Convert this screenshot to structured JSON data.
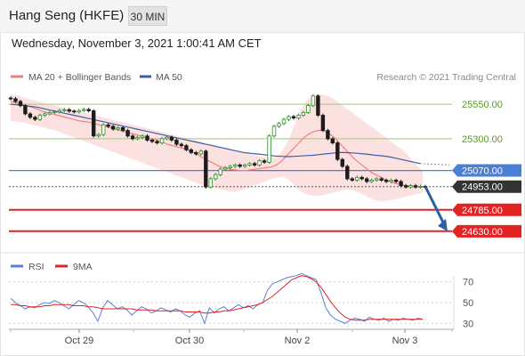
{
  "header": {
    "title": "Hang Seng (HKFE)",
    "timeframe": "30 MIN"
  },
  "datetime": "Wednesday, November 3, 2021 1:00:41 AM CET",
  "legend": {
    "ma20": "MA 20 + Bollinger Bands",
    "ma50": "MA 50",
    "rsi": "RSI",
    "ma9": "9MA"
  },
  "copyright": "Research © 2021 Trading Central",
  "colors": {
    "ma20": "#f08080",
    "ma50": "#3b5ea8",
    "bands": "#fcdcdc",
    "up": "#2e8b2e",
    "down": "#1c1c1c",
    "resistance": "#9ccc6a",
    "pivot": "#4a7fd4",
    "support": "#e32222",
    "arrow": "#2d5fa3",
    "rsi": "#5b7fd6",
    "ma9": "#e32222"
  },
  "chart_data": [
    {
      "type": "candlestick",
      "title": "Hang Seng (HKFE)",
      "x_ticks": [
        "Oct 29",
        "Oct 30",
        "Nov 2",
        "Nov 3"
      ],
      "ylim": [
        24500,
        25660
      ],
      "levels": {
        "resistance": [
          {
            "value": 25550,
            "label": "25550.00"
          },
          {
            "value": 25300,
            "label": "25300.00"
          }
        ],
        "pivot": {
          "value": 25070,
          "label": "25070.00"
        },
        "current": {
          "value": 24953,
          "label": "24953.00"
        },
        "support": [
          {
            "value": 24785,
            "label": "24785.00"
          },
          {
            "value": 24630,
            "label": "24630.00"
          }
        ]
      },
      "close": [
        25590,
        25570,
        25540,
        25480,
        25455,
        25440,
        25470,
        25480,
        25490,
        25495,
        25505,
        25510,
        25500,
        25495,
        25505,
        25512,
        25502,
        25320,
        25330,
        25400,
        25390,
        25370,
        25380,
        25360,
        25320,
        25300,
        25310,
        25320,
        25290,
        25280,
        25270,
        25300,
        25310,
        25290,
        25260,
        25250,
        25220,
        25200,
        25190,
        25210,
        24950,
        25010,
        25040,
        25080,
        25090,
        25100,
        25110,
        25100,
        25110,
        25120,
        25110,
        25140,
        25130,
        25320,
        25390,
        25410,
        25440,
        25460,
        25450,
        25470,
        25490,
        25540,
        25610,
        25470,
        25360,
        25300,
        25270,
        25150,
        25100,
        25010,
        25000,
        25020,
        25010,
        24990,
        25000,
        25010,
        25000,
        24990,
        25000,
        24990,
        24960,
        24950,
        24960,
        24950,
        24955,
        24953
      ],
      "ma20": [
        25570,
        25560,
        25550,
        25540,
        25530,
        25515,
        25500,
        25490,
        25480,
        25470,
        25460,
        25450,
        25440,
        25430,
        25425,
        25420,
        25410,
        25400,
        25390,
        25380,
        25370,
        25360,
        25350,
        25340,
        25330,
        25320,
        25310,
        25300,
        25290,
        25275,
        25260,
        25250,
        25240,
        25230,
        25220,
        25200,
        25180,
        25160,
        25140,
        25120,
        25100,
        25090,
        25080,
        25075,
        25070,
        25070,
        25075,
        25080,
        25085,
        25090,
        25095,
        25110,
        25140,
        25180,
        25220,
        25260,
        25300,
        25330,
        25350,
        25360,
        25360,
        25340,
        25310,
        25270,
        25230,
        25190,
        25150,
        25120,
        25090,
        25060,
        25040,
        25020,
        25000,
        24985,
        24975,
        24965,
        24960,
        24955,
        24952,
        24950
      ],
      "ma50": [
        25550,
        25545,
        25540,
        25535,
        25530,
        25520,
        25510,
        25500,
        25490,
        25480,
        25470,
        25460,
        25450,
        25440,
        25430,
        25420,
        25410,
        25400,
        25390,
        25380,
        25370,
        25360,
        25350,
        25340,
        25330,
        25320,
        25310,
        25300,
        25290,
        25280,
        25270,
        25260,
        25250,
        25240,
        25230,
        25220,
        25210,
        25200,
        25195,
        25190,
        25185,
        25180,
        25175,
        25172,
        25170,
        25172,
        25175,
        25178,
        25180,
        25185,
        25190,
        25195,
        25200,
        25200,
        25198,
        25195,
        25190,
        25186,
        25180,
        25176,
        25170,
        25160,
        25150,
        25140,
        25130,
        25120
      ],
      "ma50_projection": [
        25120,
        25110
      ],
      "bollinger_upper": [
        25620,
        25615,
        25605,
        25590,
        25580,
        25570,
        25560,
        25550,
        25540,
        25530,
        25520,
        25510,
        25500,
        25490,
        25480,
        25470,
        25460,
        25450,
        25440,
        25430,
        25420,
        25410,
        25400,
        25390,
        25380,
        25370,
        25360,
        25350,
        25340,
        25330,
        25320,
        25310,
        25300,
        25290,
        25280,
        25270,
        25260,
        25250,
        25240,
        25230,
        25220,
        25210,
        25200,
        25190,
        25180,
        25170,
        25160,
        25160,
        25180,
        25220,
        25300,
        25400,
        25500,
        25570,
        25600,
        25620,
        25620,
        25610,
        25590,
        25560,
        25530,
        25500,
        25470,
        25440,
        25410,
        25380,
        25350,
        25320,
        25290,
        25260,
        25230,
        25200,
        25150,
        25100,
        25070
      ],
      "bollinger_lower": [
        25430,
        25425,
        25420,
        25410,
        25400,
        25390,
        25380,
        25370,
        25360,
        25345,
        25330,
        25315,
        25300,
        25285,
        25270,
        25255,
        25240,
        25225,
        25210,
        25195,
        25180,
        25165,
        25150,
        25135,
        25120,
        25105,
        25090,
        25075,
        25060,
        25045,
        25030,
        25015,
        25000,
        24985,
        24970,
        24960,
        24950,
        24940,
        24930,
        24920,
        24915,
        24920,
        24935,
        24950,
        24965,
        24980,
        24995,
        25010,
        25020,
        25030,
        25000,
        24960,
        24920,
        24900,
        24890,
        24885,
        24890,
        24900,
        24910,
        24920,
        24930,
        24930,
        24920,
        24900,
        24880,
        24860,
        24850,
        24850,
        24855,
        24860,
        24870,
        24880,
        24890,
        24900,
        24910
      ]
    },
    {
      "type": "line",
      "title": "RSI",
      "x_ticks": [
        "Oct 29",
        "Oct 30",
        "Nov 2",
        "Nov 3"
      ],
      "ylim": [
        20,
        80
      ],
      "y_ticks": [
        70,
        50,
        30
      ],
      "series": [
        {
          "name": "RSI",
          "values": [
            54,
            50,
            47,
            44,
            46,
            45,
            48,
            50,
            49,
            52,
            50,
            47,
            44,
            48,
            52,
            50,
            46,
            40,
            32,
            45,
            52,
            48,
            44,
            46,
            43,
            38,
            42,
            46,
            44,
            40,
            42,
            45,
            43,
            41,
            44,
            42,
            38,
            36,
            40,
            42,
            30,
            45,
            40,
            44,
            46,
            42,
            45,
            48,
            45,
            47,
            44,
            48,
            50,
            62,
            68,
            70,
            72,
            74,
            75,
            76,
            78,
            76,
            74,
            72,
            60,
            45,
            38,
            34,
            32,
            30,
            33,
            35,
            34,
            32,
            36,
            34,
            33,
            35,
            32,
            34,
            33,
            35,
            34,
            33,
            35,
            34
          ]
        },
        {
          "name": "9MA",
          "values": [
            48,
            48,
            47,
            47,
            46,
            46,
            46,
            47,
            47,
            48,
            48,
            48,
            48,
            47,
            47,
            47,
            46,
            46,
            45,
            44,
            44,
            44,
            44,
            44,
            44,
            44,
            43,
            43,
            43,
            43,
            42,
            42,
            42,
            42,
            42,
            42,
            41,
            41,
            41,
            41,
            40,
            40,
            41,
            41,
            42,
            42,
            43,
            44,
            45,
            46,
            47,
            48,
            50,
            53,
            56,
            60,
            64,
            68,
            72,
            74,
            76,
            75,
            73,
            70,
            65,
            58,
            51,
            45,
            40,
            36,
            34,
            33,
            33,
            33,
            34,
            34,
            34,
            34,
            34,
            34,
            34,
            34,
            34,
            34,
            34,
            34
          ]
        }
      ]
    }
  ]
}
